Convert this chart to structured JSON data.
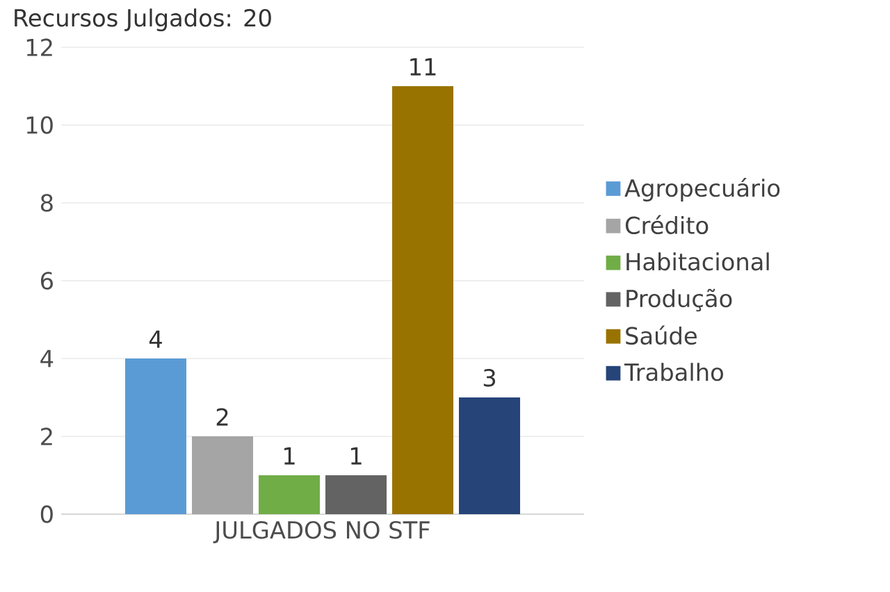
{
  "chart_data": {
    "type": "bar",
    "title": "Recursos Julgados: 20",
    "categories": [
      "JULGADOS NO STF"
    ],
    "series": [
      {
        "name": "Agropecuário",
        "color": "#5b9bd5",
        "values": [
          4
        ],
        "value_labels": [
          "4"
        ]
      },
      {
        "name": "Crédito",
        "color": "#a5a5a5",
        "values": [
          2
        ],
        "value_labels": [
          "2"
        ]
      },
      {
        "name": "Habitacional",
        "color": "#70ad47",
        "values": [
          1
        ],
        "value_labels": [
          "1"
        ]
      },
      {
        "name": "Produção",
        "color": "#636363",
        "values": [
          1
        ],
        "value_labels": [
          "1"
        ]
      },
      {
        "name": "Saúde",
        "color": "#997300",
        "values": [
          11
        ],
        "value_labels": [
          "11"
        ]
      },
      {
        "name": "Trabalho",
        "color": "#264478",
        "values": [
          3
        ],
        "value_labels": [
          "3"
        ]
      }
    ],
    "ylim": [
      0,
      12
    ],
    "yticks": [
      0,
      2,
      4,
      6,
      8,
      10,
      12
    ],
    "grid": "y",
    "legend": "right",
    "data_labels": true
  }
}
